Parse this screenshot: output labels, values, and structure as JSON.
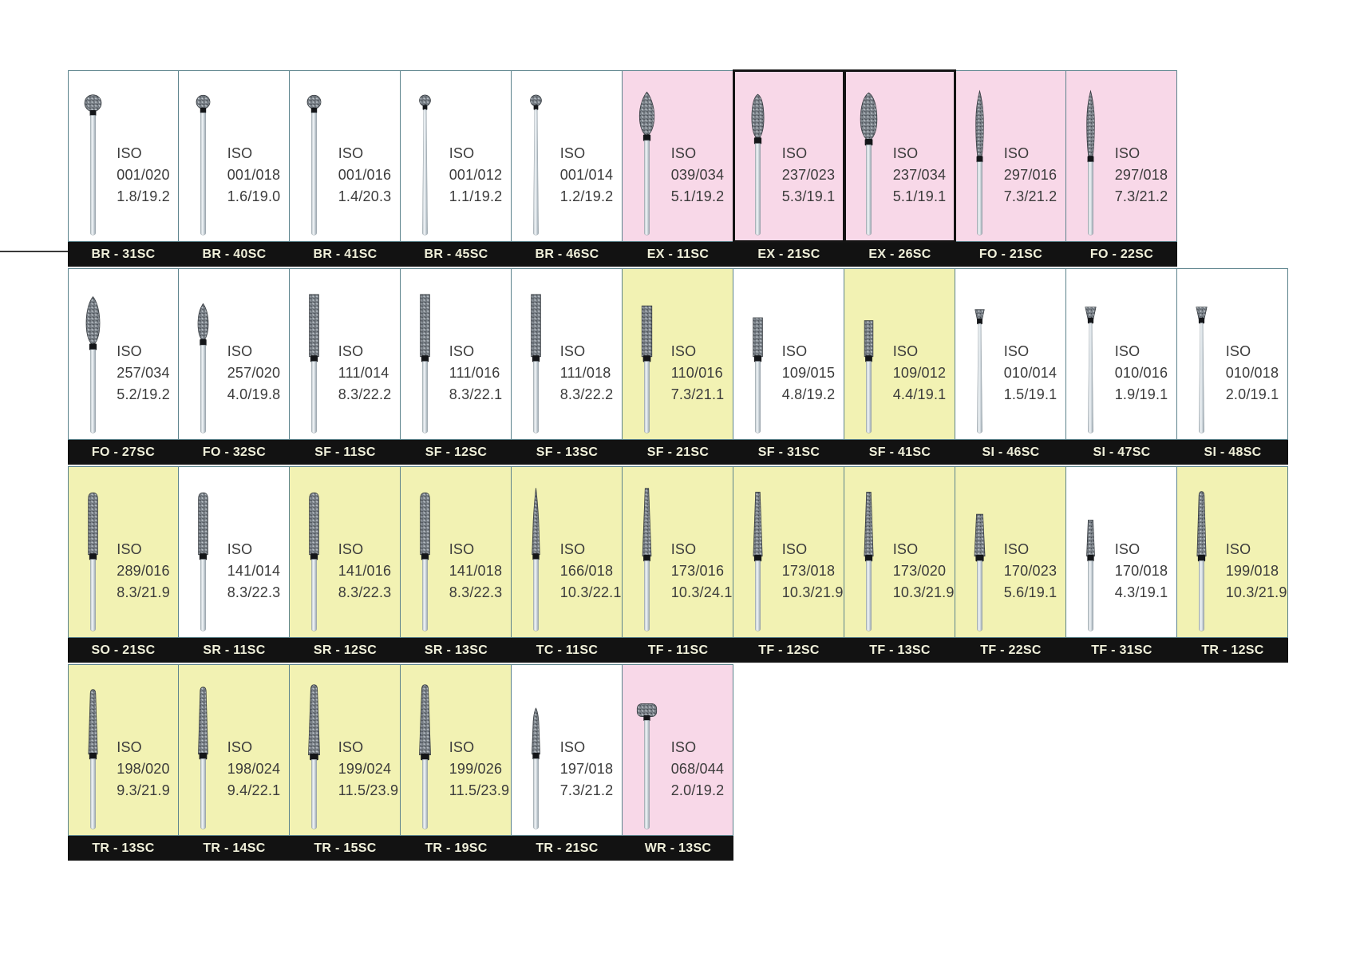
{
  "iso_prefix": "ISO",
  "colors": {
    "page_bg": "#ffffff",
    "cell_white": "#ffffff",
    "cell_pink": "#f8d8e8",
    "cell_yellow": "#f2f2b3",
    "bar_bg": "#121212",
    "bar_text": "#f0f0da",
    "spec_text": "#3b3b3b",
    "cell_border": "#5c838c",
    "cell_border_dark": "#141414"
  },
  "rows": [
    {
      "cells": [
        {
          "code": "BR - 31SC",
          "iso": "001/020",
          "dims": "1.8/19.2",
          "bg": "white",
          "shape": "ball-lg"
        },
        {
          "code": "BR - 40SC",
          "iso": "001/018",
          "dims": "1.6/19.0",
          "bg": "white",
          "shape": "ball-md"
        },
        {
          "code": "BR - 41SC",
          "iso": "001/016",
          "dims": "1.4/20.3",
          "bg": "white",
          "shape": "ball-md"
        },
        {
          "code": "BR - 45SC",
          "iso": "001/012",
          "dims": "1.1/19.2",
          "bg": "white",
          "shape": "ball-longneck"
        },
        {
          "code": "BR - 46SC",
          "iso": "001/014",
          "dims": "1.2/19.2",
          "bg": "white",
          "shape": "ball-longneck"
        },
        {
          "code": "EX - 11SC",
          "iso": "039/034",
          "dims": "5.1/19.2",
          "bg": "pink",
          "shape": "egg-pointed"
        },
        {
          "code": "EX - 21SC",
          "iso": "237/023",
          "dims": "5.3/19.1",
          "bg": "pink",
          "shape": "egg",
          "dark_border": true
        },
        {
          "code": "EX - 26SC",
          "iso": "237/034",
          "dims": "5.1/19.1",
          "bg": "pink",
          "shape": "egg-wide",
          "dark_border": true
        },
        {
          "code": "FO - 21SC",
          "iso": "297/016",
          "dims": "7.3/21.2",
          "bg": "pink",
          "shape": "flame-slim"
        },
        {
          "code": "FO - 22SC",
          "iso": "297/018",
          "dims": "7.3/21.2",
          "bg": "pink",
          "shape": "flame-slim"
        }
      ]
    },
    {
      "cells": [
        {
          "code": "FO - 27SC",
          "iso": "257/034",
          "dims": "5.2/19.2",
          "bg": "white",
          "shape": "flame"
        },
        {
          "code": "FO - 32SC",
          "iso": "257/020",
          "dims": "4.0/19.8",
          "bg": "white",
          "shape": "flame-sm"
        },
        {
          "code": "SF - 11SC",
          "iso": "111/014",
          "dims": "8.3/22.2",
          "bg": "white",
          "shape": "cyl-flat-lg"
        },
        {
          "code": "SF - 12SC",
          "iso": "111/016",
          "dims": "8.3/22.1",
          "bg": "white",
          "shape": "cyl-flat-lg"
        },
        {
          "code": "SF - 13SC",
          "iso": "111/018",
          "dims": "8.3/22.2",
          "bg": "white",
          "shape": "cyl-flat-lg"
        },
        {
          "code": "SF - 21SC",
          "iso": "110/016",
          "dims": "7.3/21.1",
          "bg": "yellow",
          "shape": "cyl-flat-md"
        },
        {
          "code": "SF - 31SC",
          "iso": "109/015",
          "dims": "4.8/19.2",
          "bg": "white",
          "shape": "cyl-flat-sm"
        },
        {
          "code": "SF - 41SC",
          "iso": "109/012",
          "dims": "4.4/19.1",
          "bg": "yellow",
          "shape": "cyl-flat-xs"
        },
        {
          "code": "SI - 46SC",
          "iso": "010/014",
          "dims": "1.5/19.1",
          "bg": "white",
          "shape": "inv-cone-sm"
        },
        {
          "code": "SI - 47SC",
          "iso": "010/016",
          "dims": "1.9/19.1",
          "bg": "white",
          "shape": "inv-cone"
        },
        {
          "code": "SI - 48SC",
          "iso": "010/018",
          "dims": "2.0/19.1",
          "bg": "white",
          "shape": "inv-cone"
        }
      ]
    },
    {
      "cells": [
        {
          "code": "SO - 21SC",
          "iso": "289/016",
          "dims": "8.3/21.9",
          "bg": "yellow",
          "shape": "cyl-round"
        },
        {
          "code": "SR - 11SC",
          "iso": "141/014",
          "dims": "8.3/22.3",
          "bg": "white",
          "shape": "cyl-round"
        },
        {
          "code": "SR - 12SC",
          "iso": "141/016",
          "dims": "8.3/22.3",
          "bg": "yellow",
          "shape": "cyl-round"
        },
        {
          "code": "SR - 13SC",
          "iso": "141/018",
          "dims": "8.3/22.3",
          "bg": "yellow",
          "shape": "cyl-round"
        },
        {
          "code": "TC - 11SC",
          "iso": "166/018",
          "dims": "10.3/22.1",
          "bg": "yellow",
          "shape": "needle"
        },
        {
          "code": "TF - 11SC",
          "iso": "173/016",
          "dims": "10.3/24.1",
          "bg": "yellow",
          "shape": "taper-flat-xl"
        },
        {
          "code": "TF - 12SC",
          "iso": "173/018",
          "dims": "10.3/21.9",
          "bg": "yellow",
          "shape": "taper-flat-lg"
        },
        {
          "code": "TF - 13SC",
          "iso": "173/020",
          "dims": "10.3/21.9",
          "bg": "yellow",
          "shape": "taper-flat-lg"
        },
        {
          "code": "TF - 22SC",
          "iso": "170/023",
          "dims": "5.6/19.1",
          "bg": "yellow",
          "shape": "taper-flat-md"
        },
        {
          "code": "TF - 31SC",
          "iso": "170/018",
          "dims": "4.3/19.1",
          "bg": "white",
          "shape": "taper-flat-sm"
        },
        {
          "code": "TR - 12SC",
          "iso": "199/018",
          "dims": "10.3/21.9",
          "bg": "yellow",
          "shape": "taper-round-lg"
        }
      ]
    },
    {
      "cells": [
        {
          "code": "TR - 13SC",
          "iso": "198/020",
          "dims": "9.3/21.9",
          "bg": "yellow",
          "shape": "taper-round-lg"
        },
        {
          "code": "TR - 14SC",
          "iso": "198/024",
          "dims": "9.4/22.1",
          "bg": "yellow",
          "shape": "taper-round-md"
        },
        {
          "code": "TR - 15SC",
          "iso": "199/024",
          "dims": "11.5/23.9",
          "bg": "yellow",
          "shape": "taper-round-xl"
        },
        {
          "code": "TR - 19SC",
          "iso": "199/026",
          "dims": "11.5/23.9",
          "bg": "yellow",
          "shape": "taper-round-xl"
        },
        {
          "code": "TR - 21SC",
          "iso": "197/018",
          "dims": "7.3/21.2",
          "bg": "white",
          "shape": "cone-sm"
        },
        {
          "code": "WR - 13SC",
          "iso": "068/044",
          "dims": "2.0/19.2",
          "bg": "pink",
          "shape": "wheel"
        }
      ]
    }
  ]
}
